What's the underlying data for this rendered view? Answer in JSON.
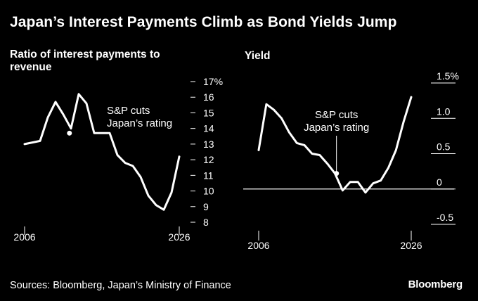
{
  "title": "Japan’s Interest Payments Climb as Bond Yields Jump",
  "source": "Sources: Bloomberg, Japan’s Ministry of Finance",
  "brand": "Bloomberg",
  "colors": {
    "background": "#000000",
    "line": "#ffffff",
    "axis": "#ffffff"
  },
  "chart_data": [
    {
      "type": "line",
      "title": "Ratio of interest payments to revenue",
      "x_tick_labels": [
        "2006",
        "2026"
      ],
      "xlim": [
        2006,
        2026
      ],
      "ylim": [
        8,
        17
      ],
      "y_ticks": [
        8,
        9,
        10,
        11,
        12,
        13,
        14,
        15,
        16,
        17
      ],
      "y_tick_labels": [
        "8",
        "9",
        "10",
        "11",
        "12",
        "13",
        "14",
        "15",
        "16",
        "17%"
      ],
      "axis_side": "right",
      "series": [
        {
          "x": [
            2006,
            2008,
            2009,
            2010,
            2011,
            2012,
            2013,
            2014,
            2015,
            2016,
            2017,
            2018,
            2019,
            2020,
            2021,
            2022,
            2023,
            2024,
            2025,
            2026
          ],
          "y": [
            13.0,
            13.2,
            14.7,
            15.7,
            14.9,
            14.0,
            16.2,
            15.6,
            13.7,
            13.7,
            13.7,
            12.3,
            11.8,
            11.6,
            10.9,
            9.7,
            9.1,
            8.8,
            9.9,
            12.2
          ]
        }
      ],
      "annotation": {
        "lines": [
          "S&P cuts",
          "Japan’s rating"
        ],
        "x": 2011.8,
        "y": 13.7
      }
    },
    {
      "type": "line",
      "title": "Yield",
      "x_tick_labels": [
        "2006",
        "2026"
      ],
      "xlim": [
        2006,
        2026
      ],
      "ylim": [
        -0.5,
        1.5
      ],
      "y_ticks": [
        -0.5,
        0,
        0.5,
        1.0,
        1.5
      ],
      "y_tick_labels": [
        "-0.5",
        "0",
        "0.5",
        "1.0",
        "1.5%"
      ],
      "axis_side": "right",
      "zero_line": true,
      "series": [
        {
          "x": [
            2006,
            2007,
            2008,
            2009,
            2010,
            2011,
            2012,
            2013,
            2014,
            2015,
            2016,
            2017,
            2018,
            2019,
            2020,
            2021,
            2022,
            2023,
            2024,
            2025,
            2026
          ],
          "y": [
            0.55,
            1.2,
            1.12,
            1.0,
            0.8,
            0.65,
            0.62,
            0.5,
            0.48,
            0.36,
            0.22,
            -0.02,
            0.1,
            0.1,
            -0.05,
            0.08,
            0.12,
            0.3,
            0.55,
            0.95,
            1.3
          ]
        }
      ],
      "annotation": {
        "lines": [
          "S&P cuts",
          "Japan’s rating"
        ],
        "x": 2016.2,
        "y": 0.22
      }
    }
  ]
}
